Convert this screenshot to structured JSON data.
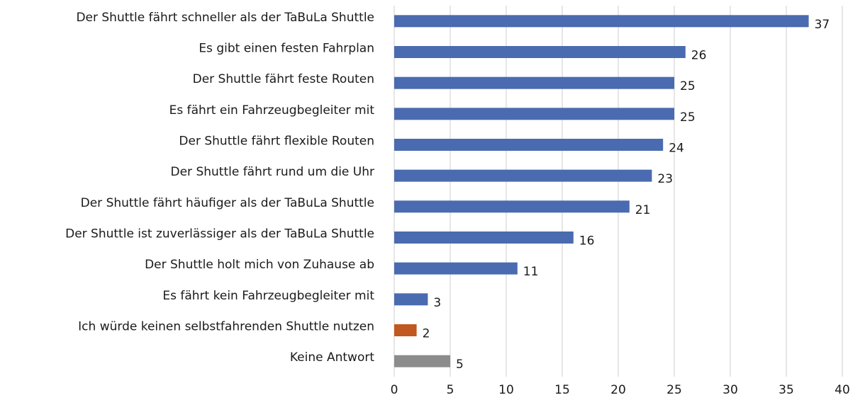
{
  "chart_data": {
    "type": "bar",
    "orientation": "horizontal",
    "categories": [
      "Der Shuttle fährt schneller als der TaBuLa Shuttle",
      "Es gibt einen festen Fahrplan",
      "Der Shuttle fährt feste Routen",
      "Es fährt ein Fahrzeugbegleiter mit",
      "Der Shuttle fährt flexible Routen",
      "Der Shuttle fährt rund um die Uhr",
      "Der Shuttle fährt häufiger als der TaBuLa Shuttle",
      "Der Shuttle ist zuverlässiger als der TaBuLa Shuttle",
      "Der Shuttle holt mich von Zuhause ab",
      "Es fährt kein Fahrzeugbegleiter mit",
      "Ich würde keinen selbstfahrenden Shuttle nutzen",
      "Keine Antwort"
    ],
    "values": [
      37,
      26,
      25,
      25,
      24,
      23,
      21,
      16,
      11,
      3,
      2,
      5
    ],
    "colors": [
      "#4a6bb0",
      "#4a6bb0",
      "#4a6bb0",
      "#4a6bb0",
      "#4a6bb0",
      "#4a6bb0",
      "#4a6bb0",
      "#4a6bb0",
      "#4a6bb0",
      "#4a6bb0",
      "#c0581f",
      "#8c8c8c"
    ],
    "xlim": [
      0,
      40
    ],
    "xticks": [
      0,
      5,
      10,
      15,
      20,
      25,
      30,
      35,
      40
    ],
    "grid": true
  }
}
